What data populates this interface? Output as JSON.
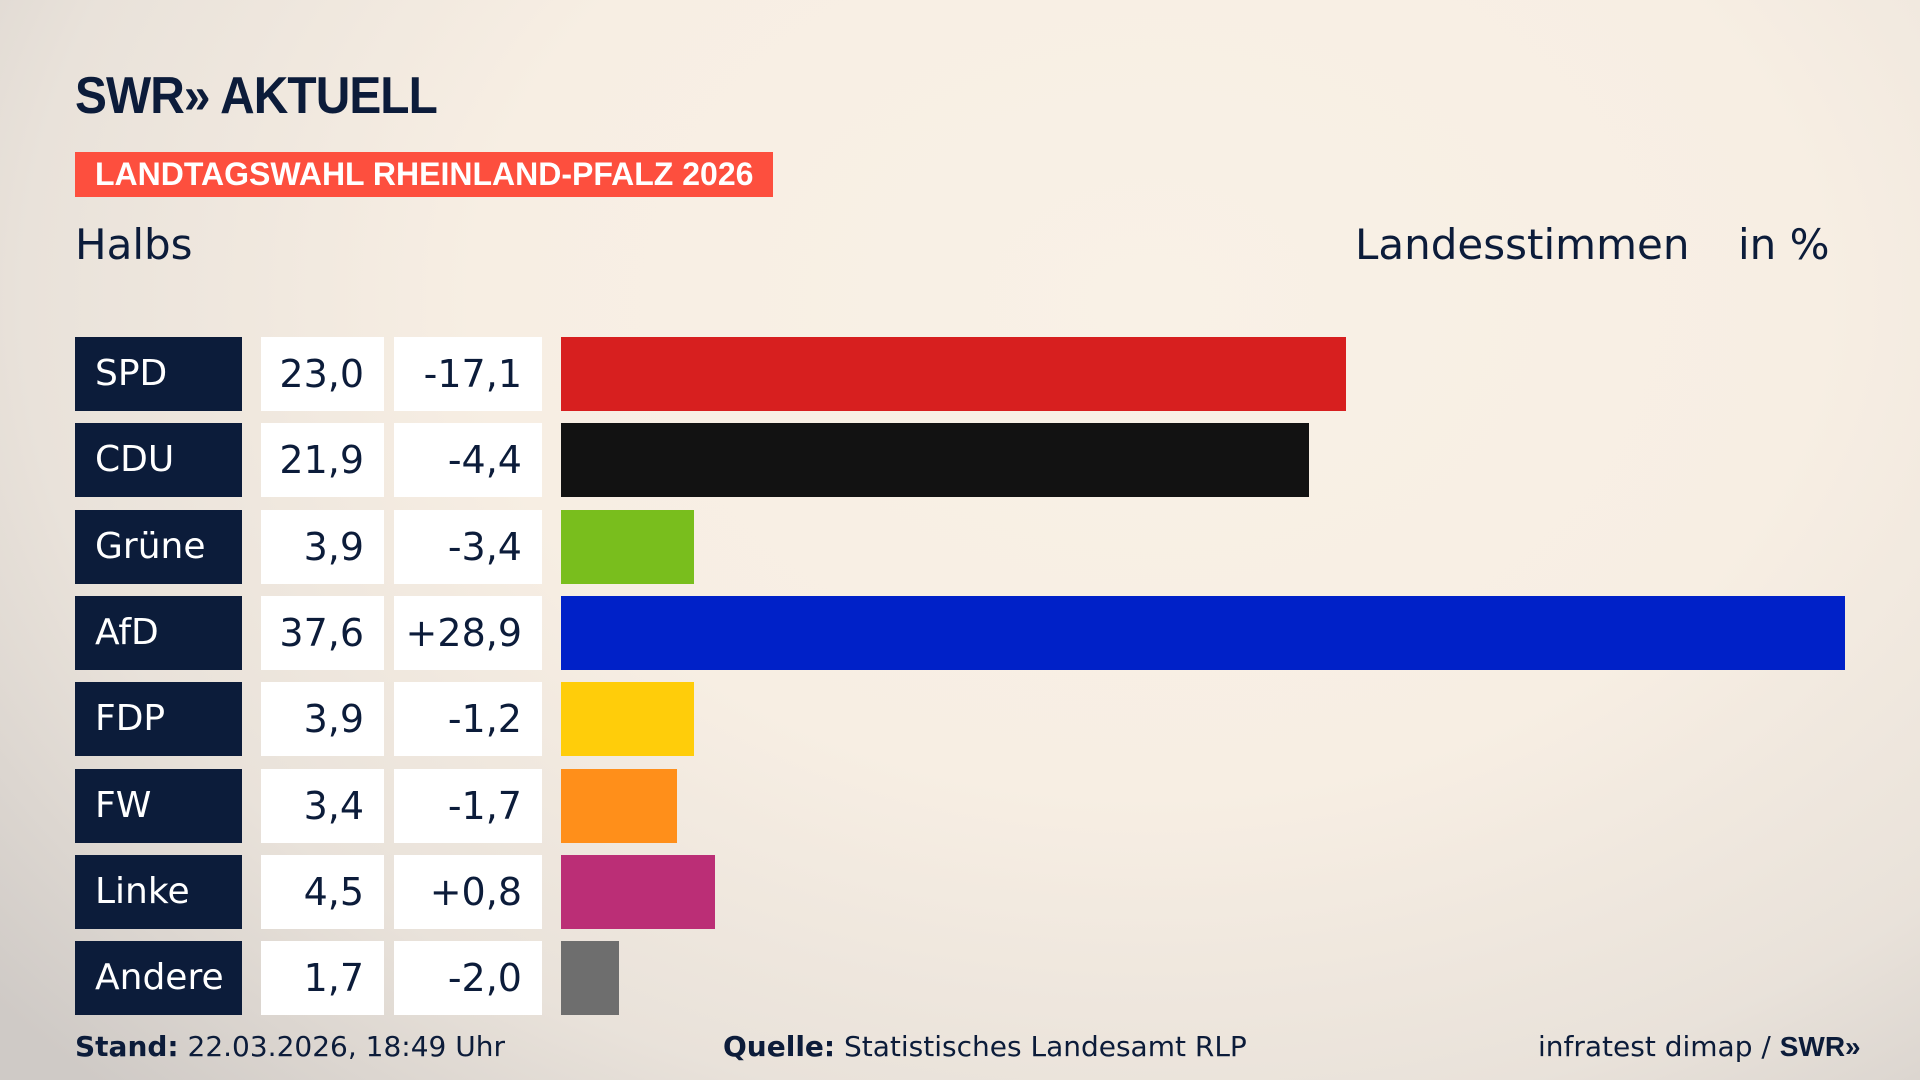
{
  "header": {
    "logo": "SWR» AKTUELL",
    "banner": "LANDTAGSWAHL RHEINLAND-PFALZ 2026",
    "location": "Halbs",
    "vote_type": "Landesstimmen",
    "unit": "in %"
  },
  "chart_data": {
    "type": "bar",
    "orientation": "horizontal",
    "categories": [
      "SPD",
      "CDU",
      "Grüne",
      "AfD",
      "FDP",
      "FW",
      "Linke",
      "Andere"
    ],
    "values": [
      23.0,
      21.9,
      3.9,
      37.6,
      3.9,
      3.4,
      4.5,
      1.7
    ],
    "value_labels": [
      "23,0",
      "21,9",
      "3,9",
      "37,6",
      "3,9",
      "3,4",
      "4,5",
      "1,7"
    ],
    "diff_labels": [
      "-17,1",
      "-4,4",
      "-3,4",
      "+28,9",
      "-1,2",
      "-1,7",
      "+0,8",
      "-2,0"
    ],
    "colors": [
      "#d71f1f",
      "#121212",
      "#79be1d",
      "#0021c8",
      "#ffcd0a",
      "#ff8f1a",
      "#bb2e76",
      "#6e6e6e"
    ],
    "grid": false
  },
  "footer": {
    "stand_label": "Stand:",
    "stand_value": " 22.03.2026, 18:49 Uhr",
    "source_label": "Quelle:",
    "source_value": " Statistisches Landesamt RLP",
    "credit": "infratest dimap / ",
    "credit_logo": "SWR»"
  }
}
